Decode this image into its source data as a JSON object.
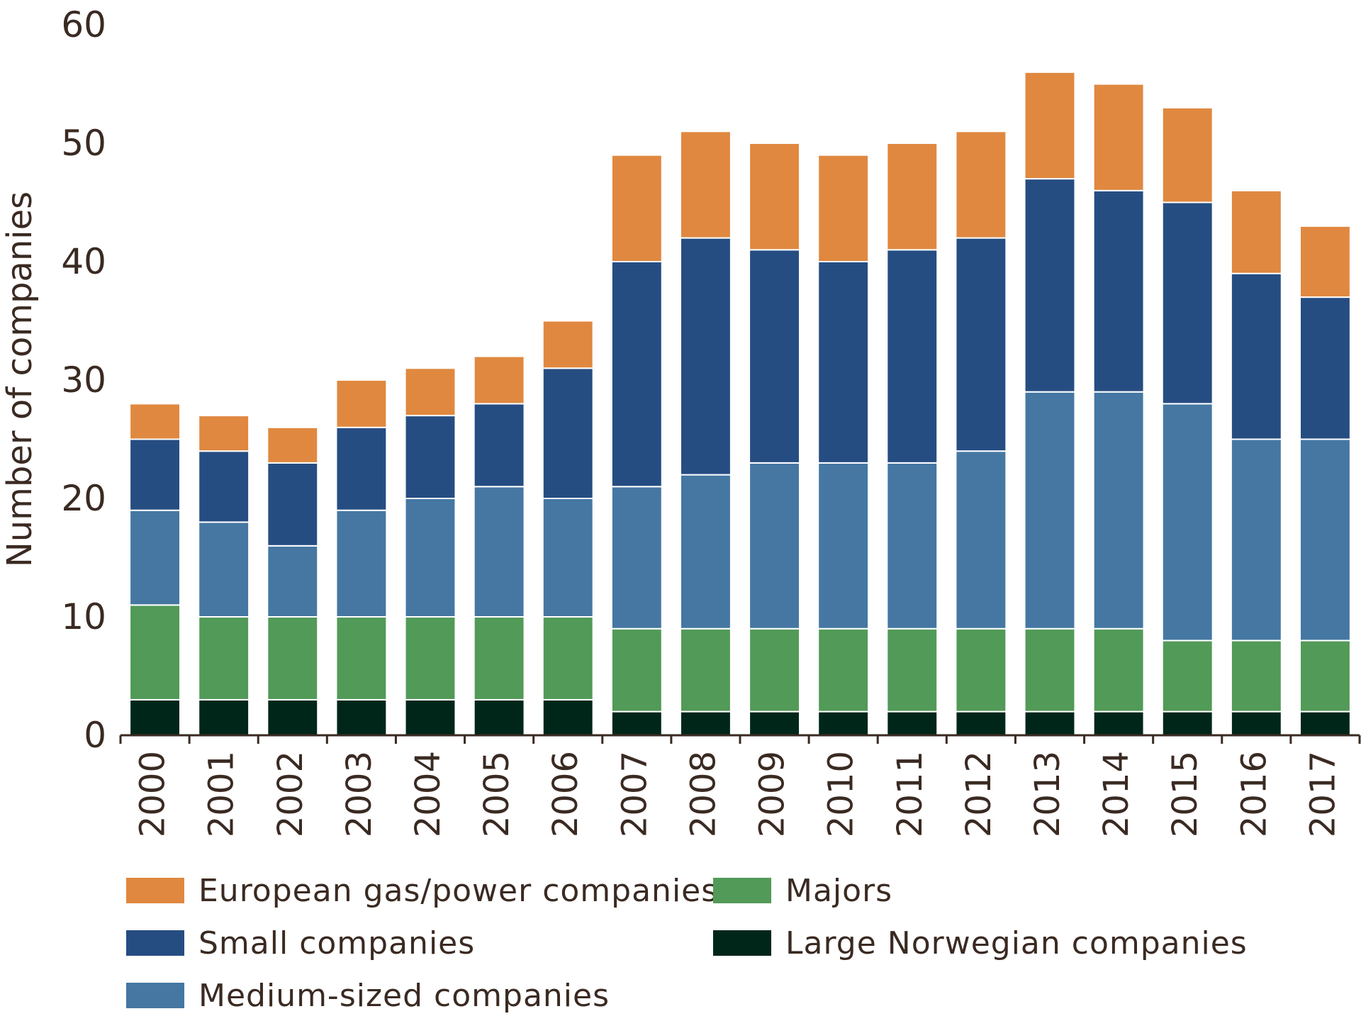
{
  "chart_data": {
    "type": "bar",
    "stacked": true,
    "title": "",
    "xlabel": "",
    "ylabel": "Number of companies",
    "ylim": [
      0,
      60
    ],
    "yticks": [
      "0",
      "10",
      "20",
      "30",
      "40",
      "50",
      "60"
    ],
    "categories": [
      "2000",
      "2001",
      "2002",
      "2003",
      "2004",
      "2005",
      "2006",
      "2007",
      "2008",
      "2009",
      "2010",
      "2011",
      "2012",
      "2013",
      "2014",
      "2015",
      "2016",
      "2017"
    ],
    "series": [
      {
        "name": "Large Norwegian companies",
        "color": "#00261a",
        "values": [
          3,
          3,
          3,
          3,
          3,
          3,
          3,
          2,
          2,
          2,
          2,
          2,
          2,
          2,
          2,
          2,
          2,
          2
        ]
      },
      {
        "name": "Majors",
        "color": "#529a58",
        "values": [
          8,
          7,
          7,
          7,
          7,
          7,
          7,
          7,
          7,
          7,
          7,
          7,
          7,
          7,
          7,
          6,
          6,
          6
        ]
      },
      {
        "name": "Medium-sized companies",
        "color": "#4577a2",
        "values": [
          8,
          8,
          6,
          9,
          10,
          11,
          10,
          12,
          13,
          14,
          14,
          14,
          15,
          20,
          20,
          20,
          17,
          17
        ]
      },
      {
        "name": "Small companies",
        "color": "#264d82",
        "values": [
          6,
          6,
          7,
          7,
          7,
          7,
          11,
          19,
          20,
          18,
          17,
          18,
          18,
          18,
          17,
          17,
          14,
          12
        ]
      },
      {
        "name": "European gas/power companies",
        "color": "#e08840",
        "values": [
          3,
          3,
          3,
          4,
          4,
          4,
          4,
          9,
          9,
          9,
          9,
          9,
          9,
          9,
          9,
          8,
          7,
          6
        ]
      }
    ],
    "legend": [
      "European gas/power companies",
      "Majors",
      "Small companies",
      "Large Norwegian companies",
      "Medium-sized companies"
    ]
  }
}
